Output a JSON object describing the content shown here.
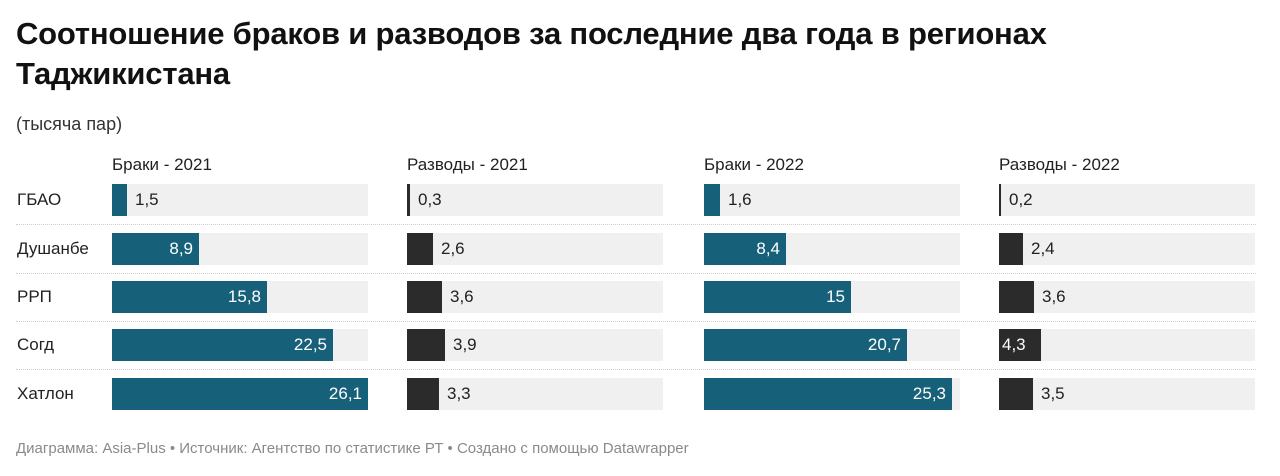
{
  "title": "Соотношение браков и разводов за последние два года в регионах Таджикистана",
  "subtitle": "(тысяча пар)",
  "footer": "Диаграмма: Asia-Plus • Источник: Агентство по статистике РТ • Создано с помощью Datawrapper",
  "colors": {
    "marriages": "#17607a",
    "divorces": "#2b2b2b",
    "track": "#f0f0f0"
  },
  "chart_data": {
    "type": "bar",
    "orientation": "horizontal",
    "layout": "small-multiples",
    "title": "Соотношение браков и разводов за последние два года в регионах Таджикистана",
    "subtitle": "(тысяча пар)",
    "unit": "тысяча пар",
    "categories": [
      "ГБАО",
      "Душанбе",
      "РРП",
      "Согд",
      "Хатлон"
    ],
    "xlim": [
      0,
      26.1
    ],
    "series": [
      {
        "name": "Браки - 2021",
        "values": [
          1.5,
          8.9,
          15.8,
          22.5,
          26.1
        ],
        "labels": [
          "1,5",
          "8,9",
          "15,8",
          "22,5",
          "26,1"
        ],
        "color": "#17607a"
      },
      {
        "name": "Разводы - 2021",
        "values": [
          0.3,
          2.6,
          3.6,
          3.9,
          3.3
        ],
        "labels": [
          "0,3",
          "2,6",
          "3,6",
          "3,9",
          "3,3"
        ],
        "color": "#2b2b2b"
      },
      {
        "name": "Браки - 2022",
        "values": [
          1.6,
          8.4,
          15,
          20.7,
          25.3
        ],
        "labels": [
          "1,6",
          "8,4",
          "15",
          "20,7",
          "25,3"
        ],
        "color": "#17607a"
      },
      {
        "name": "Разводы - 2022",
        "values": [
          0.2,
          2.4,
          3.6,
          4.3,
          3.5
        ],
        "labels": [
          "0,2",
          "2,4",
          "3,6",
          "4,3",
          "3,5"
        ],
        "color": "#2b2b2b"
      }
    ],
    "source": "Агентство по статистике РТ"
  }
}
